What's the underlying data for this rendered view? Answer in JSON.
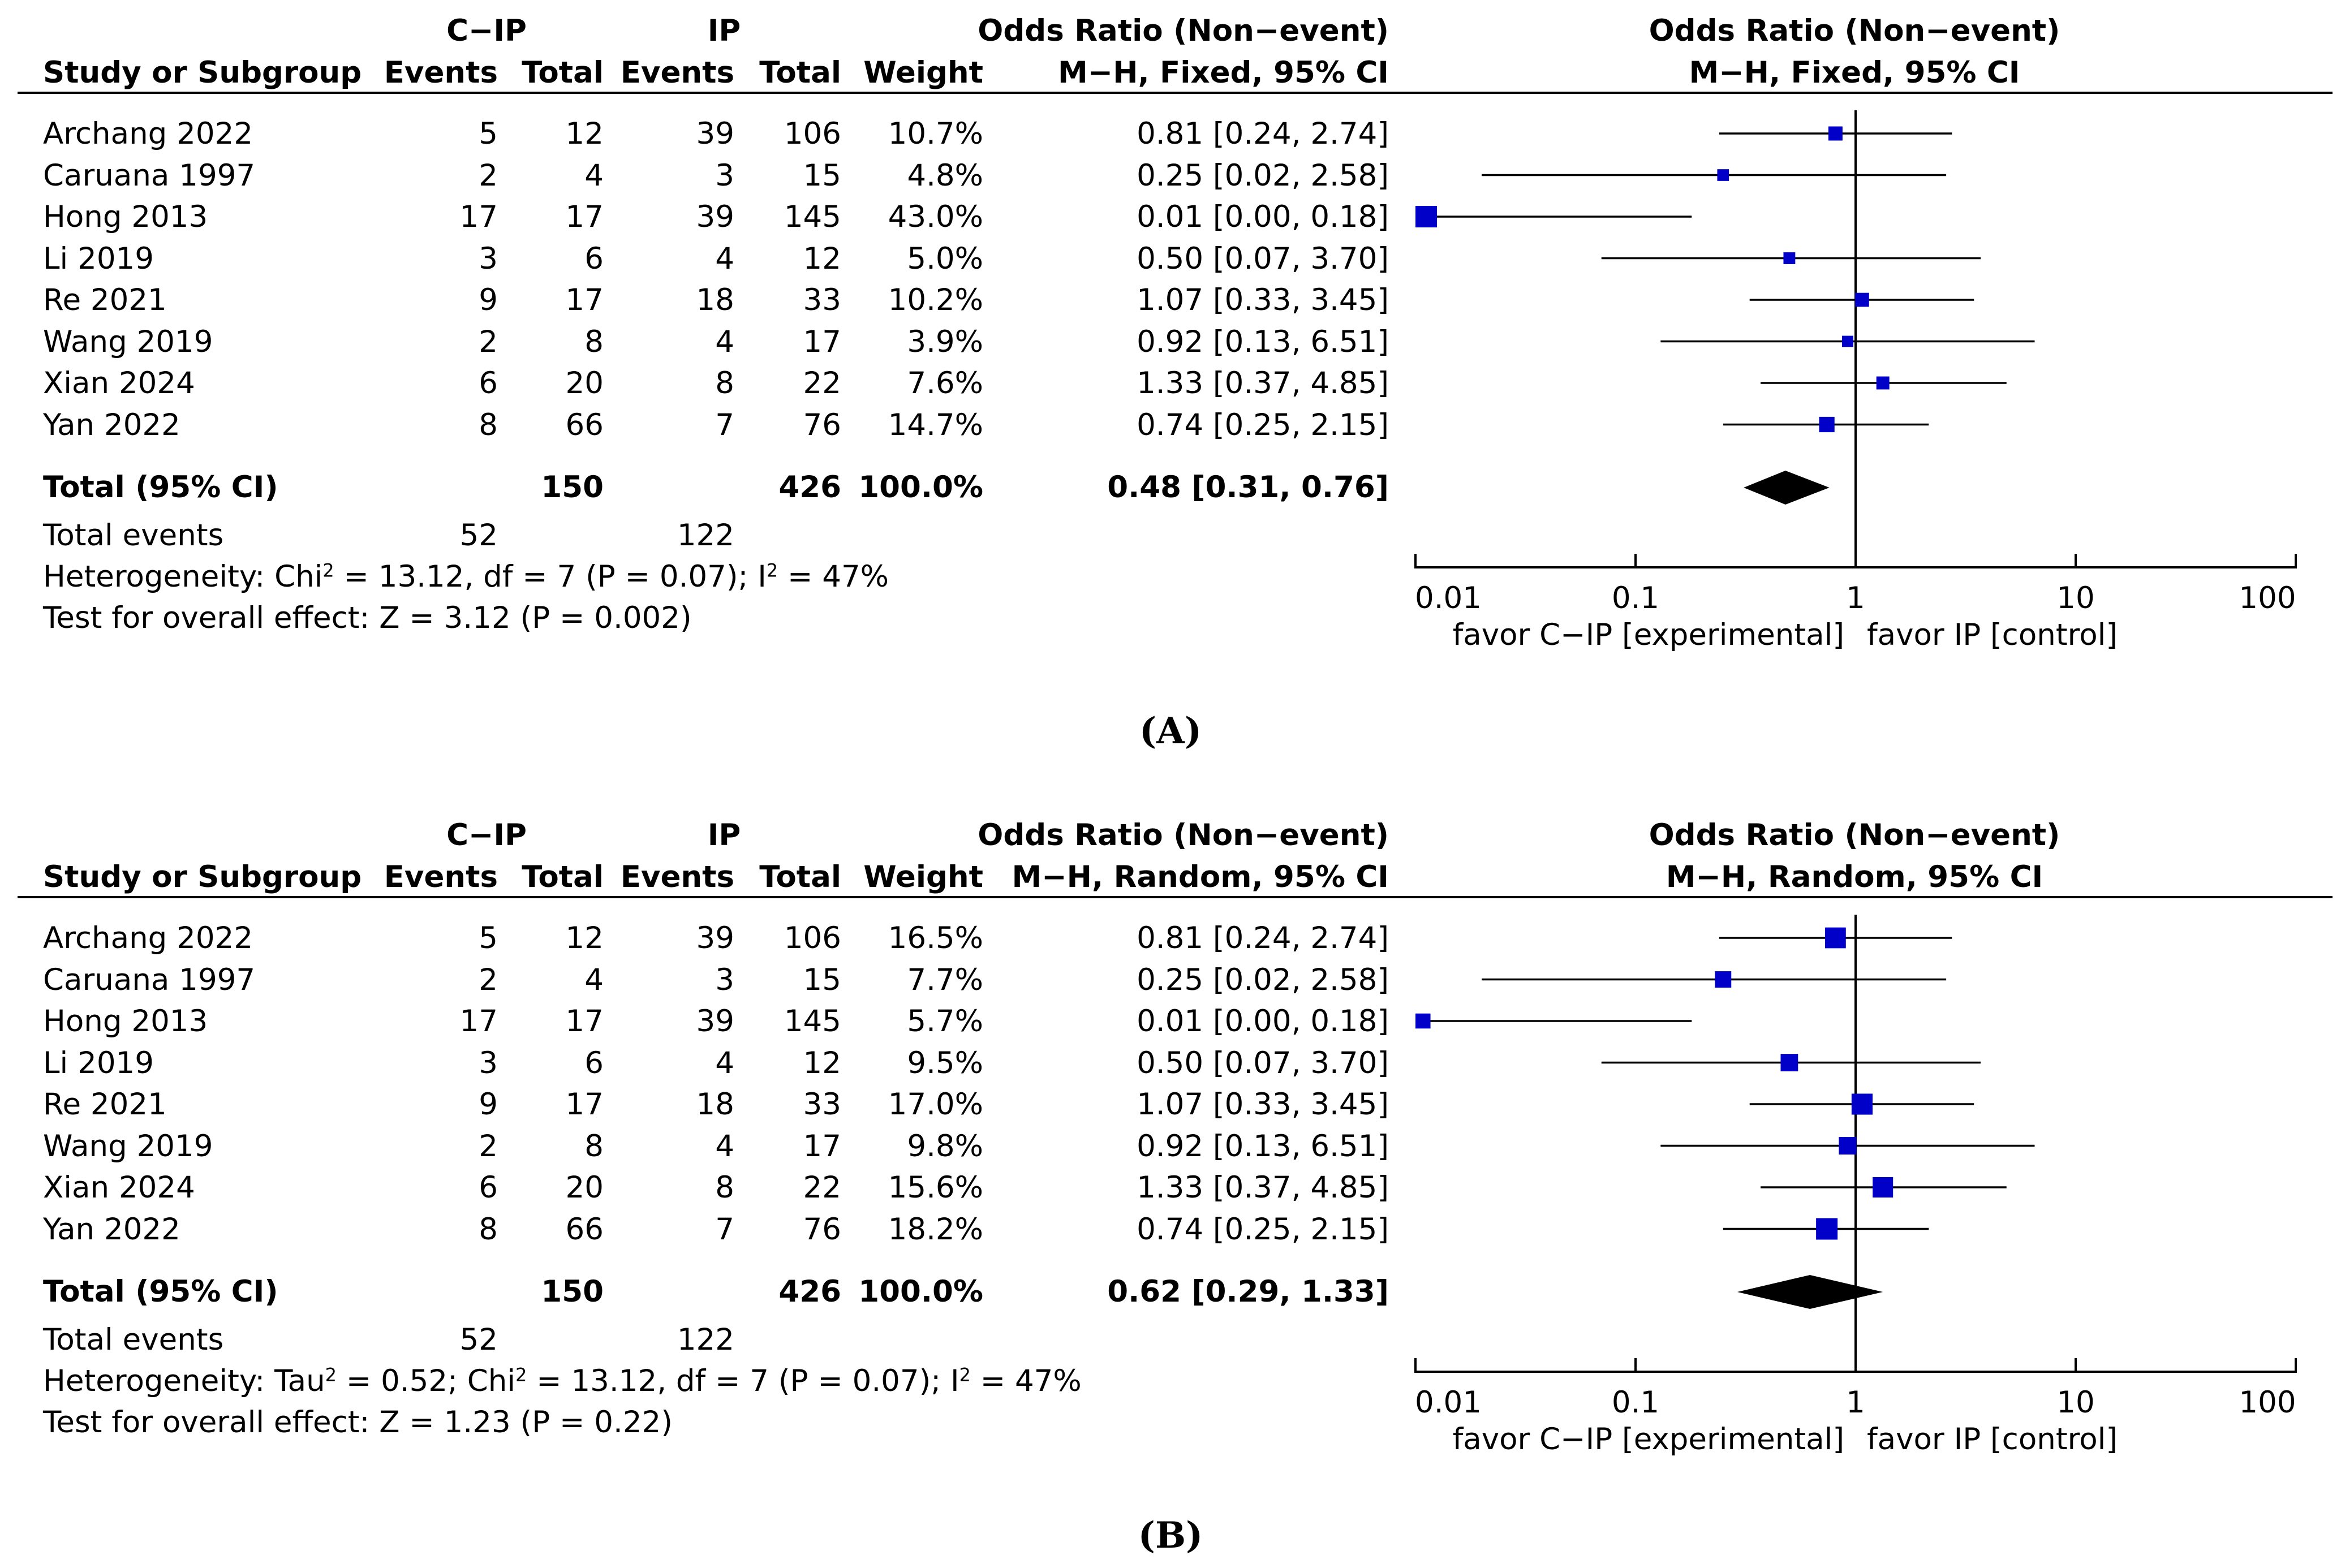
{
  "panels": [
    {
      "caption": "(A)",
      "group_headers": {
        "experimental": "C−IP",
        "control": "IP",
        "effect_left": "Odds Ratio (Non−event)",
        "effect_right": "Odds Ratio (Non−event)"
      },
      "column_headers": {
        "study": "Study or Subgroup",
        "events1": "Events",
        "total1": "Total",
        "events2": "Events",
        "total2": "Total",
        "weight": "Weight",
        "method_left": "M−H, Fixed, 95% CI",
        "method_right": "M−H, Fixed, 95% CI"
      },
      "studies": [
        {
          "name": "Archang 2022",
          "e1": "5",
          "t1": "12",
          "e2": "39",
          "t2": "106",
          "weight": "10.7%",
          "ci_text": "0.81 [0.24, 2.74]"
        },
        {
          "name": "Caruana 1997",
          "e1": "2",
          "t1": "4",
          "e2": "3",
          "t2": "15",
          "weight": "4.8%",
          "ci_text": "0.25 [0.02, 2.58]"
        },
        {
          "name": "Hong 2013",
          "e1": "17",
          "t1": "17",
          "e2": "39",
          "t2": "145",
          "weight": "43.0%",
          "ci_text": "0.01 [0.00, 0.18]"
        },
        {
          "name": "Li 2019",
          "e1": "3",
          "t1": "6",
          "e2": "4",
          "t2": "12",
          "weight": "5.0%",
          "ci_text": "0.50 [0.07, 3.70]"
        },
        {
          "name": "Re 2021",
          "e1": "9",
          "t1": "17",
          "e2": "18",
          "t2": "33",
          "weight": "10.2%",
          "ci_text": "1.07 [0.33, 3.45]"
        },
        {
          "name": "Wang 2019",
          "e1": "2",
          "t1": "8",
          "e2": "4",
          "t2": "17",
          "weight": "3.9%",
          "ci_text": "0.92 [0.13, 6.51]"
        },
        {
          "name": "Xian 2024",
          "e1": "6",
          "t1": "20",
          "e2": "8",
          "t2": "22",
          "weight": "7.6%",
          "ci_text": "1.33 [0.37, 4.85]"
        },
        {
          "name": "Yan 2022",
          "e1": "8",
          "t1": "66",
          "e2": "7",
          "t2": "76",
          "weight": "14.7%",
          "ci_text": "0.74 [0.25, 2.15]"
        }
      ],
      "total": {
        "label": "Total (95% CI)",
        "t1": "150",
        "t2": "426",
        "weight": "100.0%",
        "ci_text": "0.48 [0.31, 0.76]"
      },
      "total_events": {
        "label": "Total events",
        "e1": "52",
        "e2": "122"
      },
      "heterogeneity_parts": [
        "Heterogeneity: Chi",
        "2",
        " = 13.12, df = 7 (P = 0.07); I",
        "2",
        " = 47%"
      ],
      "overall_effect": "Test for overall effect: Z = 3.12 (P = 0.002)",
      "axis": {
        "ticks": [
          "0.01",
          "0.1",
          "1",
          "10",
          "100"
        ],
        "favor_left": "favor C−IP [experimental]",
        "favor_right": "favor IP [control]"
      }
    },
    {
      "caption": "(B)",
      "group_headers": {
        "experimental": "C−IP",
        "control": "IP",
        "effect_left": "Odds Ratio (Non−event)",
        "effect_right": "Odds Ratio (Non−event)"
      },
      "column_headers": {
        "study": "Study or Subgroup",
        "events1": "Events",
        "total1": "Total",
        "events2": "Events",
        "total2": "Total",
        "weight": "Weight",
        "method_left": "M−H, Random, 95% CI",
        "method_right": "M−H, Random, 95% CI"
      },
      "studies": [
        {
          "name": "Archang 2022",
          "e1": "5",
          "t1": "12",
          "e2": "39",
          "t2": "106",
          "weight": "16.5%",
          "ci_text": "0.81 [0.24, 2.74]"
        },
        {
          "name": "Caruana 1997",
          "e1": "2",
          "t1": "4",
          "e2": "3",
          "t2": "15",
          "weight": "7.7%",
          "ci_text": "0.25 [0.02, 2.58]"
        },
        {
          "name": "Hong 2013",
          "e1": "17",
          "t1": "17",
          "e2": "39",
          "t2": "145",
          "weight": "5.7%",
          "ci_text": "0.01 [0.00, 0.18]"
        },
        {
          "name": "Li 2019",
          "e1": "3",
          "t1": "6",
          "e2": "4",
          "t2": "12",
          "weight": "9.5%",
          "ci_text": "0.50 [0.07, 3.70]"
        },
        {
          "name": "Re 2021",
          "e1": "9",
          "t1": "17",
          "e2": "18",
          "t2": "33",
          "weight": "17.0%",
          "ci_text": "1.07 [0.33, 3.45]"
        },
        {
          "name": "Wang 2019",
          "e1": "2",
          "t1": "8",
          "e2": "4",
          "t2": "17",
          "weight": "9.8%",
          "ci_text": "0.92 [0.13, 6.51]"
        },
        {
          "name": "Xian 2024",
          "e1": "6",
          "t1": "20",
          "e2": "8",
          "t2": "22",
          "weight": "15.6%",
          "ci_text": "1.33 [0.37, 4.85]"
        },
        {
          "name": "Yan 2022",
          "e1": "8",
          "t1": "66",
          "e2": "7",
          "t2": "76",
          "weight": "18.2%",
          "ci_text": "0.74 [0.25, 2.15]"
        }
      ],
      "total": {
        "label": "Total (95% CI)",
        "t1": "150",
        "t2": "426",
        "weight": "100.0%",
        "ci_text": "0.62 [0.29, 1.33]"
      },
      "total_events": {
        "label": "Total events",
        "e1": "52",
        "e2": "122"
      },
      "heterogeneity_parts": [
        "Heterogeneity: Tau",
        "2",
        " = 0.52; Chi",
        "2",
        " = 13.12, df = 7 (P = 0.07); I",
        "2",
        " = 47%"
      ],
      "overall_effect": "Test for overall effect: Z = 1.23 (P = 0.22)",
      "axis": {
        "ticks": [
          "0.01",
          "0.1",
          "1",
          "10",
          "100"
        ],
        "favor_left": "favor C−IP [experimental]",
        "favor_right": "favor IP [control]"
      }
    }
  ],
  "chart_data": [
    {
      "type": "forest",
      "model": "M−H, Fixed, 95% CI",
      "x_scale": "log",
      "xlim": [
        0.01,
        100
      ],
      "null_line": 1,
      "studies": [
        {
          "name": "Archang 2022",
          "or": 0.81,
          "lo": 0.24,
          "hi": 2.74,
          "weight": 10.7
        },
        {
          "name": "Caruana 1997",
          "or": 0.25,
          "lo": 0.02,
          "hi": 2.58,
          "weight": 4.8
        },
        {
          "name": "Hong 2013",
          "or": 0.01,
          "lo": 0.0,
          "hi": 0.18,
          "weight": 43.0
        },
        {
          "name": "Li 2019",
          "or": 0.5,
          "lo": 0.07,
          "hi": 3.7,
          "weight": 5.0
        },
        {
          "name": "Re 2021",
          "or": 1.07,
          "lo": 0.33,
          "hi": 3.45,
          "weight": 10.2
        },
        {
          "name": "Wang 2019",
          "or": 0.92,
          "lo": 0.13,
          "hi": 6.51,
          "weight": 3.9
        },
        {
          "name": "Xian 2024",
          "or": 1.33,
          "lo": 0.37,
          "hi": 4.85,
          "weight": 7.6
        },
        {
          "name": "Yan 2022",
          "or": 0.74,
          "lo": 0.25,
          "hi": 2.15,
          "weight": 14.7
        }
      ],
      "pooled": {
        "or": 0.48,
        "lo": 0.31,
        "hi": 0.76
      },
      "marker_color": "#0000c8"
    },
    {
      "type": "forest",
      "model": "M−H, Random, 95% CI",
      "x_scale": "log",
      "xlim": [
        0.01,
        100
      ],
      "null_line": 1,
      "studies": [
        {
          "name": "Archang 2022",
          "or": 0.81,
          "lo": 0.24,
          "hi": 2.74,
          "weight": 16.5
        },
        {
          "name": "Caruana 1997",
          "or": 0.25,
          "lo": 0.02,
          "hi": 2.58,
          "weight": 7.7
        },
        {
          "name": "Hong 2013",
          "or": 0.01,
          "lo": 0.0,
          "hi": 0.18,
          "weight": 5.7
        },
        {
          "name": "Li 2019",
          "or": 0.5,
          "lo": 0.07,
          "hi": 3.7,
          "weight": 9.5
        },
        {
          "name": "Re 2021",
          "or": 1.07,
          "lo": 0.33,
          "hi": 3.45,
          "weight": 17.0
        },
        {
          "name": "Wang 2019",
          "or": 0.92,
          "lo": 0.13,
          "hi": 6.51,
          "weight": 9.8
        },
        {
          "name": "Xian 2024",
          "or": 1.33,
          "lo": 0.37,
          "hi": 4.85,
          "weight": 15.6
        },
        {
          "name": "Yan 2022",
          "or": 0.74,
          "lo": 0.25,
          "hi": 2.15,
          "weight": 18.2
        }
      ],
      "pooled": {
        "or": 0.62,
        "lo": 0.29,
        "hi": 1.33
      },
      "marker_color": "#0000c8"
    }
  ]
}
